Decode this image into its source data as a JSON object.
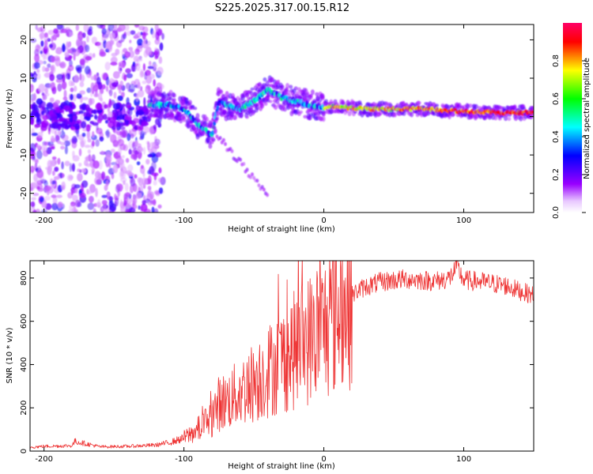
{
  "title": "S225.2025.317.00.15.R12",
  "colors": {
    "snr_line": "#ee3333",
    "axis": "#000000",
    "spectrogram_background": "#ffffff"
  },
  "colorbar": {
    "label": "Normalized spectral amplitude",
    "range": [
      0.0,
      1.0
    ],
    "ticks": [
      0.0,
      0.2,
      0.4,
      0.6,
      0.8
    ],
    "tick_labels": [
      "0.0",
      "0.2",
      "0.4",
      "0.6",
      "0.8"
    ],
    "colormap": [
      "#ffffff",
      "#a000ff",
      "#0000ff",
      "#00ffff",
      "#00ff00",
      "#ffff00",
      "#ff0000"
    ]
  },
  "chart_data": [
    {
      "type": "heatmap",
      "name": "spectrogram",
      "xlabel": "Height of straight line (km)",
      "ylabel": "Frequency (Hz)",
      "xlim": [
        -210,
        150
      ],
      "ylim": [
        -25,
        24
      ],
      "xticks": [
        -200,
        -100,
        0,
        100
      ],
      "xtick_labels": [
        "-200",
        "-100",
        "0",
        "100"
      ],
      "yticks": [
        -20,
        -10,
        0,
        10,
        20
      ],
      "ytick_labels": [
        "-20",
        "-10",
        "0",
        "10",
        "20"
      ],
      "dominant_frequency_track": {
        "x": [
          -125,
          -110,
          -100,
          -90,
          -80,
          -75,
          -70,
          -60,
          -50,
          -40,
          -30,
          -20,
          -10,
          0,
          10,
          30,
          50,
          70,
          90,
          110,
          130,
          150
        ],
        "y": [
          3,
          3,
          2,
          -2,
          -5,
          4,
          3,
          2,
          4,
          7,
          5,
          4,
          3,
          2.5,
          2.5,
          2,
          2,
          2,
          1.5,
          1.2,
          1,
          1
        ]
      },
      "noise_region_x": [
        -210,
        -125
      ]
    },
    {
      "type": "line",
      "name": "snr",
      "xlabel": "Height of straight line (km)",
      "ylabel": "SNR (10 * v/v)",
      "xlim": [
        -210,
        150
      ],
      "ylim": [
        0,
        880
      ],
      "xticks": [
        -200,
        -100,
        0,
        100
      ],
      "xtick_labels": [
        "-200",
        "-100",
        "0",
        "100"
      ],
      "yticks": [
        0,
        200,
        400,
        600,
        800
      ],
      "ytick_labels": [
        "0",
        "200",
        "400",
        "600",
        "800"
      ],
      "series": [
        {
          "name": "SNR",
          "x": [
            -210,
            -200,
            -180,
            -178,
            -160,
            -140,
            -120,
            -110,
            -100,
            -90,
            -80,
            -75,
            -70,
            -60,
            -50,
            -40,
            -30,
            -20,
            -15,
            -10,
            -5,
            0,
            5,
            10,
            12,
            15,
            20,
            25,
            30,
            40,
            50,
            60,
            70,
            80,
            90,
            95,
            100,
            110,
            120,
            130,
            140,
            150
          ],
          "values": [
            18,
            22,
            25,
            45,
            20,
            22,
            28,
            40,
            60,
            100,
            160,
            220,
            230,
            270,
            320,
            370,
            420,
            470,
            500,
            520,
            560,
            570,
            600,
            640,
            700,
            660,
            720,
            745,
            760,
            780,
            790,
            795,
            790,
            785,
            800,
            850,
            790,
            785,
            775,
            765,
            740,
            720
          ]
        }
      ]
    }
  ]
}
